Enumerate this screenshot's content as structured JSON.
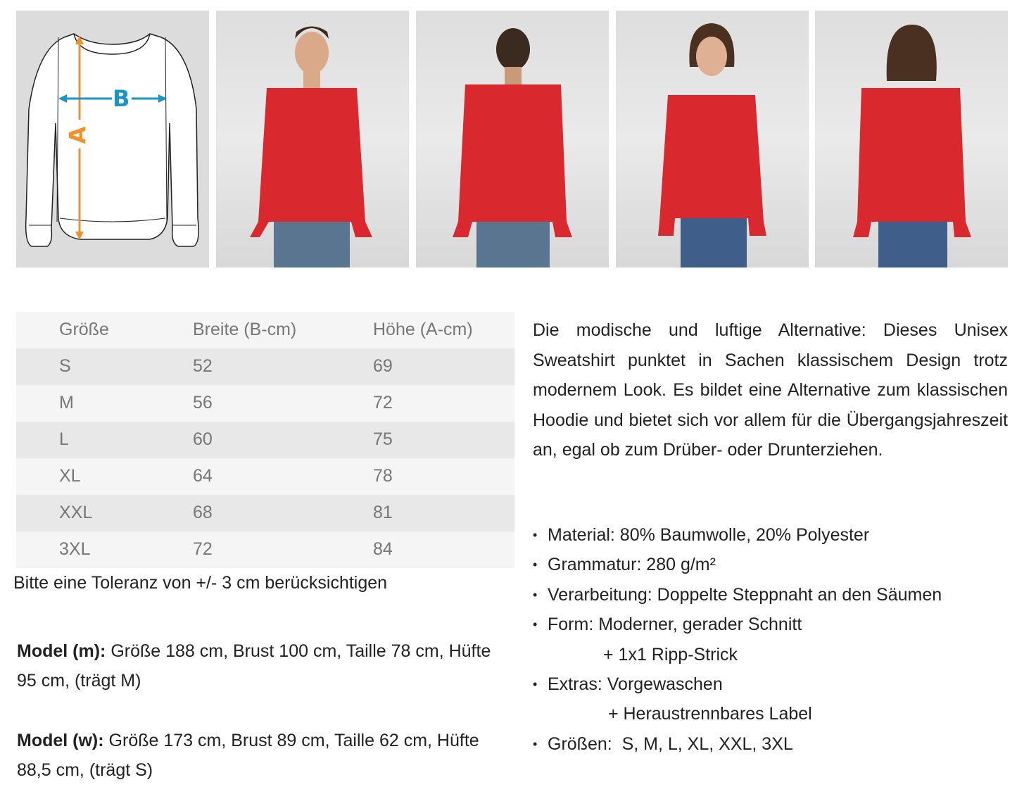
{
  "diagram": {
    "label_a": "A",
    "label_b": "B",
    "color_a": "#f0922b",
    "color_b": "#1a94c9"
  },
  "photos": [
    {
      "name": "male-front"
    },
    {
      "name": "male-back"
    },
    {
      "name": "female-front"
    },
    {
      "name": "female-back"
    }
  ],
  "shirt_color": "#d9282e",
  "size_table": {
    "headers": [
      "Größe",
      "Breite (B-cm)",
      "Höhe (A-cm)"
    ],
    "rows": [
      [
        "S",
        "52",
        "69"
      ],
      [
        "M",
        "56",
        "72"
      ],
      [
        "L",
        "60",
        "75"
      ],
      [
        "XL",
        "64",
        "78"
      ],
      [
        "XXL",
        "68",
        "81"
      ],
      [
        "3XL",
        "72",
        "84"
      ]
    ]
  },
  "tolerance_note": "Bitte eine Toleranz von +/- 3 cm berücksichtigen",
  "models": [
    {
      "label": "Model (m):",
      "text": "Größe 188 cm, Brust 100 cm, Taille 78 cm, Hüfte 95 cm, (trägt M)"
    },
    {
      "label": "Model (w):",
      "text": "Größe 173 cm, Brust 89 cm, Taille 62 cm, Hüfte 88,5 cm, (trägt S)"
    }
  ],
  "description": "Die modische und luftige Alternative: Dieses Unisex Sweatshirt punktet in Sachen klassischem Design trotz modernem Look. Es bildet eine Alternative zum klassischen Hoodie und bietet sich vor allem für die Übergangsjahreszeit an, egal ob zum Drüber- oder Drunterziehen.",
  "features": [
    "Material: 80% Baumwolle, 20% Polyester",
    "Grammatur: 280 g/m²",
    "Verarbeitung: Doppelte Steppnaht an den Säumen",
    "Form: Moderner, gerader Schnitt",
    "+ 1x1 Ripp-Strick",
    "Extras: Vorgewaschen",
    " + Heraustrennbares Label",
    "Größen:  S, M, L, XL, XXL, 3XL"
  ]
}
